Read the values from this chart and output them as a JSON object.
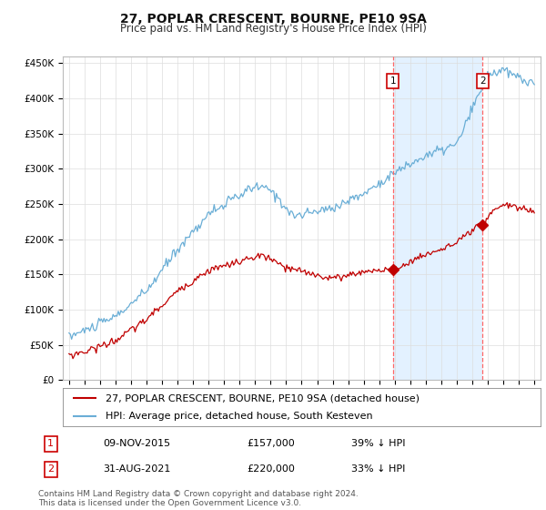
{
  "title": "27, POPLAR CRESCENT, BOURNE, PE10 9SA",
  "subtitle": "Price paid vs. HM Land Registry's House Price Index (HPI)",
  "ylim": [
    0,
    460000
  ],
  "yticks": [
    0,
    50000,
    100000,
    150000,
    200000,
    250000,
    300000,
    350000,
    400000,
    450000
  ],
  "ytick_labels": [
    "£0",
    "£50K",
    "£100K",
    "£150K",
    "£200K",
    "£250K",
    "£300K",
    "£350K",
    "£400K",
    "£450K"
  ],
  "hpi_color": "#6aaed6",
  "price_color": "#c00000",
  "vline_color": "#ff6666",
  "fill_color": "#ddeeff",
  "transaction1": {
    "label": "1",
    "date": "09-NOV-2015",
    "price": 157000,
    "pct": "39% ↓ HPI"
  },
  "transaction2": {
    "label": "2",
    "date": "31-AUG-2021",
    "price": 220000,
    "pct": "33% ↓ HPI"
  },
  "legend1": "27, POPLAR CRESCENT, BOURNE, PE10 9SA (detached house)",
  "legend2": "HPI: Average price, detached house, South Kesteven",
  "footnote": "Contains HM Land Registry data © Crown copyright and database right 2024.\nThis data is licensed under the Open Government Licence v3.0.",
  "background_color": "#ffffff",
  "grid_color": "#dddddd",
  "title_fontsize": 10,
  "subtitle_fontsize": 8.5,
  "tick_fontsize": 7.5,
  "legend_fontsize": 8,
  "footnote_fontsize": 6.5,
  "box_color": "#cc0000"
}
